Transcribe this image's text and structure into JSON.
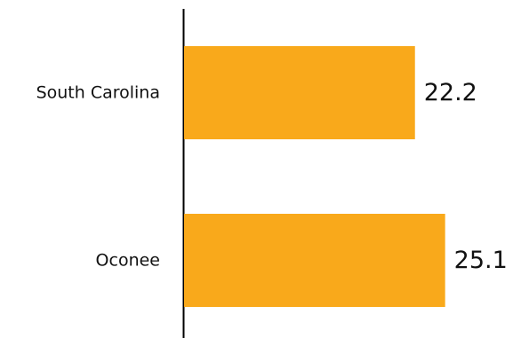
{
  "chart_data": {
    "type": "bar",
    "orientation": "horizontal",
    "categories": [
      "South Carolina",
      "Oconee"
    ],
    "values": [
      22.2,
      25.1
    ],
    "value_labels": [
      "22.2",
      "25.1"
    ],
    "title": "",
    "xlabel": "",
    "ylabel": "",
    "grid": false,
    "bar_color": "#F9A91B",
    "axis_color": "#000000",
    "text_color": "#111111"
  }
}
